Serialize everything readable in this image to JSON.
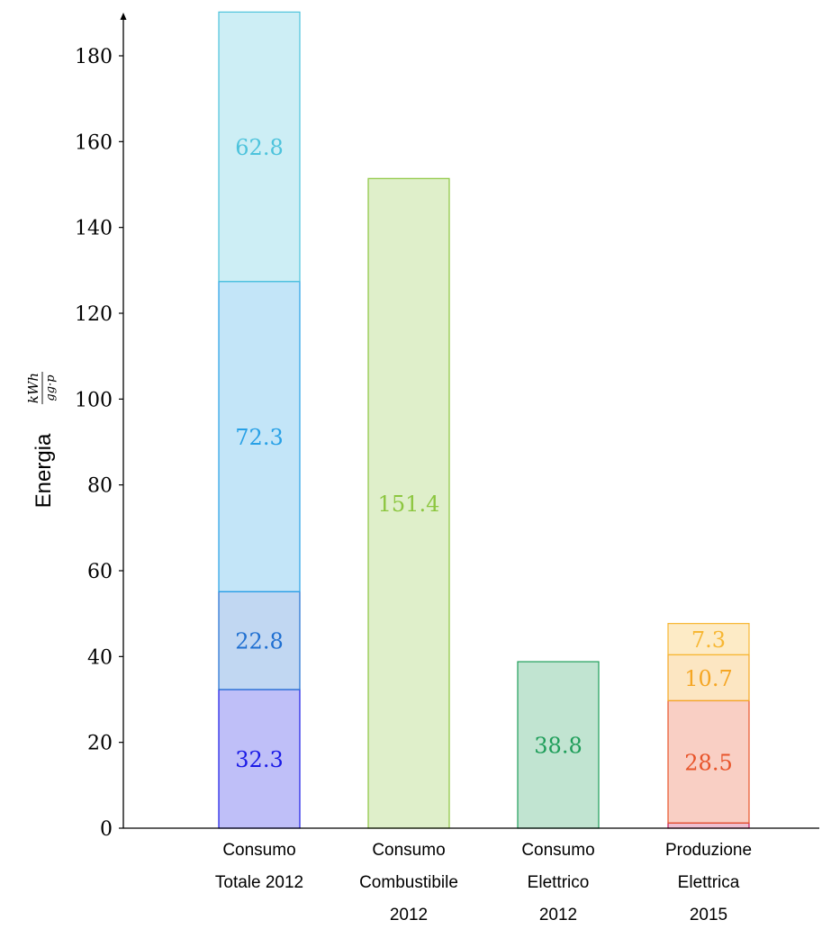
{
  "chart_data": {
    "type": "bar",
    "stacked": true,
    "ylabel": "Energia",
    "ylabel_unit_numerator": "kWh",
    "ylabel_unit_denominator": "gg·p",
    "ylim": [
      0,
      190
    ],
    "yticks": [
      0,
      20,
      40,
      60,
      80,
      100,
      120,
      140,
      160,
      180
    ],
    "categories": [
      [
        "Consumo",
        "Totale 2012"
      ],
      [
        "Consumo",
        "Combustibile",
        "2012"
      ],
      [
        "Consumo",
        "Elettrico",
        "2012"
      ],
      [
        "Produzione",
        "Elettrica",
        "2015"
      ]
    ],
    "bars": [
      {
        "segments": [
          {
            "value": 32.3,
            "label": "32.3",
            "color": "#1a1ae6"
          },
          {
            "value": 22.8,
            "label": "22.8",
            "color": "#1f6fd1"
          },
          {
            "value": 72.3,
            "label": "72.3",
            "color": "#27a0e6"
          },
          {
            "value": 62.8,
            "label": "62.8",
            "color": "#4dc3dc"
          }
        ]
      },
      {
        "segments": [
          {
            "value": 151.4,
            "label": "151.4",
            "color": "#8cc63f"
          }
        ]
      },
      {
        "segments": [
          {
            "value": 38.8,
            "label": "38.8",
            "color": "#1f9e5a"
          }
        ]
      },
      {
        "segments": [
          {
            "value": 1.2,
            "label": "",
            "color": "#c2185b"
          },
          {
            "value": 28.5,
            "label": "28.5",
            "color": "#e8542a"
          },
          {
            "value": 10.7,
            "label": "10.7",
            "color": "#f5a623"
          },
          {
            "value": 7.3,
            "label": "7.3",
            "color": "#f7b733"
          }
        ]
      }
    ]
  }
}
